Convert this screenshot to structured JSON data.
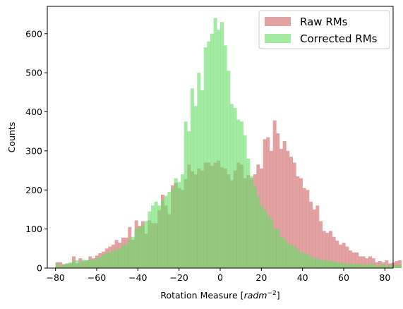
{
  "chart_data": {
    "type": "bar",
    "subtype": "overlaid-histogram",
    "xlabel": "Rotation Measure [rad m^-2]",
    "xlabel_parts": {
      "prefix": "Rotation Measure [",
      "unit": "radm",
      "exp": "−2",
      "suffix": "]"
    },
    "ylabel": "Counts",
    "xlim": [
      -84,
      84
    ],
    "ylim": [
      0,
      670
    ],
    "xticks": [
      -80,
      -60,
      -40,
      -20,
      0,
      20,
      40,
      60,
      80
    ],
    "yticks": [
      0,
      100,
      200,
      300,
      400,
      500,
      600
    ],
    "xticklabels": [
      "−80",
      "−60",
      "−40",
      "−20",
      "0",
      "20",
      "40",
      "60",
      "80"
    ],
    "yticklabels": [
      "0",
      "100",
      "200",
      "300",
      "400",
      "500",
      "600"
    ],
    "legend": {
      "placement": "top-right"
    },
    "bin_start": -80,
    "bin_width": 1.6,
    "colors": {
      "raw": "#d67b7b",
      "corrected": "#66dd66",
      "raw_alpha": 0.7,
      "corrected_alpha": 0.6
    },
    "series": [
      {
        "name": "Raw RMs",
        "values": [
          15,
          15,
          10,
          12,
          12,
          30,
          12,
          25,
          18,
          20,
          30,
          25,
          32,
          38,
          42,
          50,
          55,
          60,
          72,
          65,
          78,
          78,
          105,
          72,
          122,
          108,
          120,
          88,
          122,
          115,
          115,
          148,
          188,
          160,
          138,
          212,
          218,
          205,
          200,
          228,
          265,
          248,
          240,
          255,
          250,
          270,
          270,
          262,
          270,
          275,
          258,
          255,
          240,
          225,
          250,
          270,
          265,
          230,
          238,
          230,
          240,
          265,
          255,
          330,
          335,
          300,
          378,
          345,
          305,
          325,
          300,
          285,
          270,
          235,
          230,
          205,
          200,
          170,
          150,
          160,
          120,
          95,
          90,
          95,
          80,
          70,
          60,
          65,
          55,
          45,
          40,
          40,
          30,
          30,
          25,
          30,
          25,
          15,
          18,
          15,
          20,
          12,
          14,
          18,
          20
        ]
      },
      {
        "name": "Corrected RMs",
        "values": [
          12,
          5,
          10,
          10,
          15,
          18,
          20,
          15,
          22,
          20,
          22,
          22,
          25,
          28,
          35,
          40,
          40,
          45,
          48,
          50,
          60,
          60,
          75,
          80,
          100,
          105,
          110,
          120,
          145,
          160,
          170,
          160,
          175,
          185,
          195,
          205,
          230,
          220,
          240,
          375,
          350,
          460,
          415,
          500,
          455,
          565,
          580,
          600,
          640,
          610,
          630,
          570,
          505,
          420,
          410,
          380,
          375,
          340,
          280,
          235,
          210,
          185,
          160,
          150,
          135,
          125,
          100,
          100,
          80,
          75,
          62,
          60,
          55,
          48,
          40,
          38,
          35,
          30,
          25,
          25,
          22,
          20,
          20,
          18,
          18,
          15,
          14,
          12,
          10,
          12,
          10,
          12,
          9,
          9,
          8,
          12,
          10,
          5,
          8,
          10,
          5,
          8,
          5,
          8,
          8
        ]
      }
    ]
  }
}
